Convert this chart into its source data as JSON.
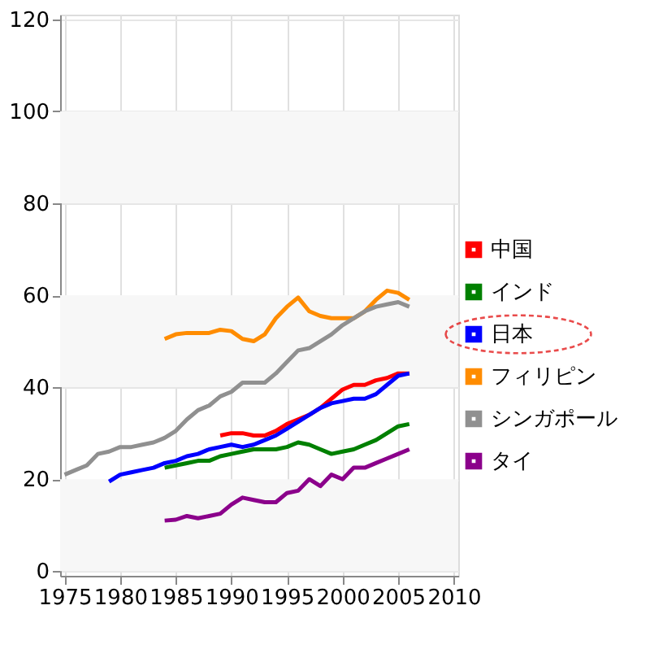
{
  "chart_data": {
    "type": "line",
    "xlim": [
      1974.6,
      2010.4
    ],
    "xticks": [
      1975,
      1980,
      1985,
      1990,
      1995,
      2000,
      2005,
      2010
    ],
    "ylim": [
      -1,
      121
    ],
    "yticks": [
      0,
      20,
      40,
      60,
      80,
      100,
      120
    ],
    "grid": true,
    "legend": "right",
    "line_style": "solid",
    "bands": [
      {
        "axis": "y",
        "from": 0,
        "to": 20,
        "color": "#f7f7f7"
      },
      {
        "axis": "y",
        "from": 40,
        "to": 60,
        "color": "#f7f7f7"
      },
      {
        "axis": "y",
        "from": 80,
        "to": 100,
        "color": "#f7f7f7"
      }
    ],
    "series": [
      {
        "name": "中国",
        "color": "#ff0000",
        "x": [
          1989,
          1990,
          1991,
          1992,
          1993,
          1994,
          1995,
          1996,
          1997,
          1998,
          1999,
          2000,
          2001,
          2002,
          2003,
          2004,
          2005,
          2006
        ],
        "values": [
          29.5,
          30,
          30,
          29.5,
          29.5,
          30.5,
          32,
          33,
          34,
          35.5,
          37.5,
          39.5,
          40.5,
          40.5,
          41.5,
          42,
          43,
          43
        ]
      },
      {
        "name": "インド",
        "color": "#008000",
        "x": [
          1984,
          1985,
          1986,
          1987,
          1988,
          1989,
          1990,
          1991,
          1992,
          1993,
          1994,
          1995,
          1996,
          1997,
          1998,
          1999,
          2000,
          2001,
          2002,
          2003,
          2004,
          2005,
          2006
        ],
        "values": [
          22.5,
          23,
          23.5,
          24,
          24,
          25,
          25.5,
          26,
          26.5,
          26.5,
          26.5,
          27,
          28,
          27.5,
          26.5,
          25.5,
          26,
          26.5,
          27.5,
          28.5,
          30,
          31.5,
          32
        ]
      },
      {
        "name": "日本",
        "color": "#0000ff",
        "x": [
          1979,
          1980,
          1981,
          1982,
          1983,
          1984,
          1985,
          1986,
          1987,
          1988,
          1989,
          1990,
          1991,
          1992,
          1993,
          1994,
          1995,
          1996,
          1997,
          1998,
          1999,
          2000,
          2001,
          2002,
          2003,
          2004,
          2005,
          2006
        ],
        "values": [
          19.5,
          21,
          21.5,
          22,
          22.5,
          23.5,
          24,
          25,
          25.5,
          26.5,
          27,
          27.5,
          27,
          27.5,
          28.5,
          29.5,
          31,
          32.5,
          34,
          35.5,
          36.5,
          37,
          37.5,
          37.5,
          38.5,
          40.5,
          42.5,
          43
        ]
      },
      {
        "name": "フィリピン",
        "color": "#ff8c00",
        "x": [
          1984,
          1985,
          1986,
          1987,
          1988,
          1989,
          1990,
          1991,
          1992,
          1993,
          1994,
          1995,
          1996,
          1997,
          1998,
          1999,
          2000,
          2001,
          2002,
          2003,
          2004,
          2005,
          2006
        ],
        "values": [
          50.5,
          51.5,
          51.8,
          51.8,
          51.8,
          52.5,
          52.2,
          50.5,
          50,
          51.5,
          55,
          57.5,
          59.5,
          56.5,
          55.5,
          55,
          55,
          55,
          56.5,
          59,
          61,
          60.5,
          59
        ]
      },
      {
        "name": "シンガポール",
        "color": "#909090",
        "x": [
          1975,
          1976,
          1977,
          1978,
          1979,
          1980,
          1981,
          1982,
          1983,
          1984,
          1985,
          1986,
          1987,
          1988,
          1989,
          1990,
          1991,
          1992,
          1993,
          1994,
          1995,
          1996,
          1997,
          1998,
          1999,
          2000,
          2001,
          2002,
          2003,
          2004,
          2005,
          2006
        ],
        "values": [
          21,
          22,
          23,
          25.5,
          26,
          27,
          27,
          27.5,
          28,
          29,
          30.5,
          33,
          35,
          36,
          38,
          39,
          41,
          41,
          41,
          43,
          45.5,
          48,
          48.5,
          50,
          51.5,
          53.5,
          55,
          56.5,
          57.5,
          58,
          58.5,
          57.5
        ]
      },
      {
        "name": "タイ",
        "color": "#8b008b",
        "x": [
          1984,
          1985,
          1986,
          1987,
          1988,
          1989,
          1990,
          1991,
          1992,
          1993,
          1994,
          1995,
          1996,
          1997,
          1998,
          1999,
          2000,
          2001,
          2002,
          2003,
          2004,
          2005,
          2006
        ],
        "values": [
          11,
          11.2,
          12,
          11.5,
          12,
          12.5,
          14.5,
          16,
          15.5,
          15,
          15,
          17,
          17.5,
          20,
          18.5,
          21,
          20,
          22.5,
          22.5,
          23.5,
          24.5,
          25.5,
          26.5
        ]
      }
    ]
  }
}
